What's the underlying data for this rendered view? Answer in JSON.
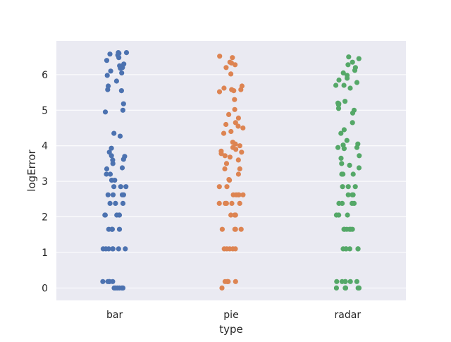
{
  "chart_data": {
    "type": "scatter",
    "title": "",
    "xlabel": "type",
    "ylabel": "logError",
    "categories": [
      "bar",
      "pie",
      "radar"
    ],
    "ylim": [
      -0.35,
      6.95
    ],
    "yticks": [
      0,
      1,
      2,
      3,
      4,
      5,
      6
    ],
    "grid": true,
    "colors": {
      "bar": "#4c72b0",
      "pie": "#dd8452",
      "radar": "#55a868",
      "background": "#eaeaf2",
      "grid": "#ffffff"
    },
    "series": [
      {
        "category": "bar",
        "values": [
          6.62,
          6.58,
          6.55,
          6.62,
          6.6,
          6.48,
          6.4,
          6.3,
          6.25,
          6.2,
          6.18,
          6.1,
          6.05,
          5.98,
          5.82,
          5.68,
          5.58,
          5.55,
          5.18,
          5.0,
          4.95,
          4.35,
          4.27,
          3.93,
          3.82,
          3.72,
          3.7,
          3.62,
          3.6,
          3.5,
          3.38,
          3.35,
          3.2,
          3.2,
          3.03,
          3.03,
          2.85,
          2.85,
          2.85,
          2.62,
          2.62,
          2.62,
          2.62,
          2.38,
          2.38,
          2.38,
          2.05,
          2.05,
          2.05,
          2.05,
          2.05,
          1.65,
          1.65,
          1.65,
          1.65,
          1.65,
          1.1,
          1.1,
          1.1,
          1.1,
          1.1,
          1.1,
          1.1,
          0.18,
          0.18,
          0.18,
          0.18,
          0.18,
          0.0,
          0.0,
          0.0,
          0.0,
          0.0,
          0.0
        ]
      },
      {
        "category": "pie",
        "values": [
          6.52,
          6.48,
          6.35,
          6.33,
          6.28,
          6.2,
          6.02,
          5.68,
          5.62,
          5.58,
          5.58,
          5.55,
          5.52,
          5.3,
          5.02,
          4.88,
          4.78,
          4.65,
          4.6,
          4.55,
          4.5,
          4.4,
          4.35,
          4.1,
          4.05,
          4.0,
          3.95,
          3.9,
          3.85,
          3.82,
          3.78,
          3.72,
          3.68,
          3.6,
          3.5,
          3.35,
          3.35,
          3.2,
          3.05,
          3.03,
          2.85,
          2.85,
          2.62,
          2.62,
          2.62,
          2.62,
          2.62,
          2.38,
          2.38,
          2.38,
          2.38,
          2.38,
          2.05,
          2.05,
          2.05,
          2.05,
          1.65,
          1.65,
          1.65,
          1.65,
          1.1,
          1.1,
          1.1,
          1.1,
          1.1,
          0.18,
          0.18,
          0.18,
          0.18,
          0.18,
          0.0
        ]
      },
      {
        "category": "radar",
        "values": [
          6.5,
          6.45,
          6.35,
          6.28,
          6.2,
          6.12,
          6.05,
          5.98,
          5.9,
          5.85,
          5.78,
          5.7,
          5.7,
          5.62,
          5.25,
          5.2,
          5.18,
          5.15,
          5.05,
          5.0,
          4.92,
          4.65,
          4.45,
          4.35,
          4.15,
          4.05,
          4.02,
          3.95,
          3.95,
          3.92,
          3.72,
          3.65,
          3.5,
          3.45,
          3.38,
          3.2,
          3.2,
          3.2,
          2.85,
          2.85,
          2.85,
          2.62,
          2.62,
          2.62,
          2.38,
          2.38,
          2.38,
          2.38,
          2.05,
          2.05,
          2.05,
          1.65,
          1.65,
          1.65,
          1.65,
          1.65,
          1.65,
          1.1,
          1.1,
          1.1,
          1.1,
          1.1,
          1.1,
          0.18,
          0.18,
          0.18,
          0.18,
          0.18,
          0.18,
          0.0,
          0.0,
          0.0,
          0.0,
          0.0
        ]
      }
    ]
  }
}
